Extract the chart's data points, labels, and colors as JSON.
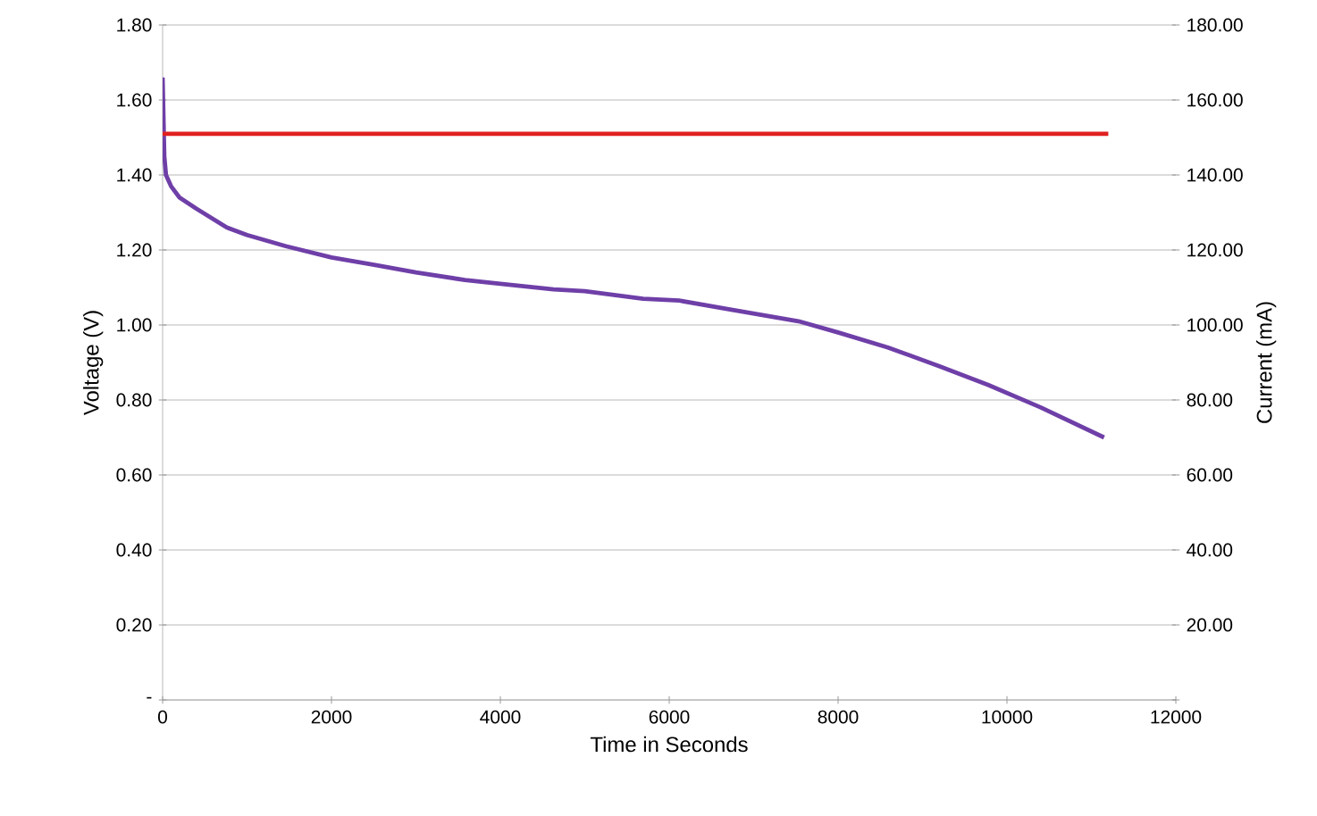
{
  "chart_data": {
    "type": "line",
    "xlabel": "Time in Seconds",
    "ylabel": "Voltage (V)",
    "y2label": "Current (mA)",
    "xlim": [
      0,
      12000
    ],
    "xticks": [
      0,
      2000,
      4000,
      6000,
      8000,
      10000,
      12000
    ],
    "ylim": [
      0,
      1.8
    ],
    "yticks": [
      {
        "value": 0,
        "label": "-"
      },
      {
        "value": 0.2,
        "label": "0.20"
      },
      {
        "value": 0.4,
        "label": "0.40"
      },
      {
        "value": 0.6,
        "label": "0.60"
      },
      {
        "value": 0.8,
        "label": "0.80"
      },
      {
        "value": 1.0,
        "label": "1.00"
      },
      {
        "value": 1.2,
        "label": "1.20"
      },
      {
        "value": 1.4,
        "label": "1.40"
      },
      {
        "value": 1.6,
        "label": "1.60"
      },
      {
        "value": 1.8,
        "label": "1.80"
      }
    ],
    "y2lim": [
      0,
      180
    ],
    "y2ticks": [
      {
        "value": 0,
        "label": null
      },
      {
        "value": 20,
        "label": "20.00"
      },
      {
        "value": 40,
        "label": "40.00"
      },
      {
        "value": 60,
        "label": "60.00"
      },
      {
        "value": 80,
        "label": "80.00"
      },
      {
        "value": 100,
        "label": "100.00"
      },
      {
        "value": 120,
        "label": "120.00"
      },
      {
        "value": 140,
        "label": "140.00"
      },
      {
        "value": 160,
        "label": "160.00"
      },
      {
        "value": 180,
        "label": "180.00"
      }
    ],
    "grid": "y",
    "marker": "none",
    "line_style": "solid",
    "series": [
      {
        "color": "#6f3fa8",
        "x": [
          0,
          20,
          40,
          100,
          200,
          400,
          760,
          1000,
          1460,
          2000,
          2520,
          3000,
          3580,
          4000,
          4630,
          5000,
          5690,
          6120,
          6750,
          7530,
          8000,
          8590,
          9200,
          9780,
          10400,
          11150
        ],
        "values": [
          1.66,
          1.45,
          1.4,
          1.37,
          1.34,
          1.31,
          1.26,
          1.24,
          1.21,
          1.18,
          1.16,
          1.14,
          1.12,
          1.11,
          1.095,
          1.09,
          1.07,
          1.065,
          1.04,
          1.01,
          0.98,
          0.94,
          0.89,
          0.84,
          0.78,
          0.7
        ]
      },
      {
        "color": "#e02020",
        "axis": "y2",
        "x": [
          0,
          11200
        ],
        "values": [
          151,
          151
        ]
      }
    ]
  }
}
